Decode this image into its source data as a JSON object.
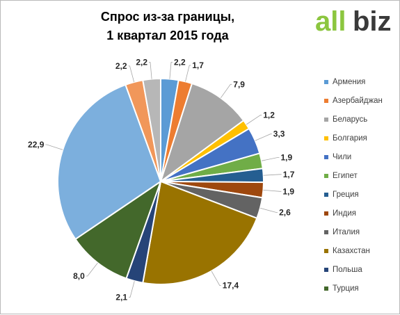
{
  "title": {
    "line1": "Спрос из-за границы,",
    "line2": "1 квартал  2015 года"
  },
  "logo": {
    "text_all": "all",
    "text_biz": "biz",
    "colors": {
      "all": "#8cc63f",
      "biz": "#3a3a3a"
    }
  },
  "chart_data": {
    "type": "pie",
    "title": "Спрос из-за границы, 1 квартал  2015 года",
    "legend_position": "right",
    "start_angle_deg": 0,
    "direction": "clockwise",
    "slices": [
      {
        "label": "Армения",
        "value": 2.2,
        "value_label": "2,2",
        "color": "#5b9bd5"
      },
      {
        "label": "Азербайджан",
        "value": 1.7,
        "value_label": "1,7",
        "color": "#ed7d31"
      },
      {
        "label": "Беларусь",
        "value": 7.9,
        "value_label": "7,9",
        "color": "#a5a5a5"
      },
      {
        "label": "Болгария",
        "value": 1.2,
        "value_label": "1,2",
        "color": "#ffc000"
      },
      {
        "label": "Чили",
        "value": 3.3,
        "value_label": "3,3",
        "color": "#4472c4"
      },
      {
        "label": "Египет",
        "value": 1.9,
        "value_label": "1,9",
        "color": "#70ad47"
      },
      {
        "label": "Греция",
        "value": 1.7,
        "value_label": "1,7",
        "color": "#255e91"
      },
      {
        "label": "Индия",
        "value": 1.9,
        "value_label": "1,9",
        "color": "#9e480e"
      },
      {
        "label": "Италия",
        "value": 2.6,
        "value_label": "2,6",
        "color": "#636363"
      },
      {
        "label": "Казахстан",
        "value": 17.4,
        "value_label": "17,4",
        "color": "#997300"
      },
      {
        "label": "Польша",
        "value": 2.1,
        "value_label": "2,1",
        "color": "#264478"
      },
      {
        "label": "Турция",
        "value": 8.0,
        "value_label": "8,0",
        "color": "#43682b"
      },
      {
        "label": "",
        "value": 22.9,
        "value_label": "22,9",
        "color": "#7cafdd"
      },
      {
        "label": "",
        "value": 2.2,
        "value_label": "2,2",
        "color": "#f1975a"
      },
      {
        "label": "",
        "value": 2.2,
        "value_label": "2,2",
        "color": "#b7b7b7"
      }
    ]
  }
}
